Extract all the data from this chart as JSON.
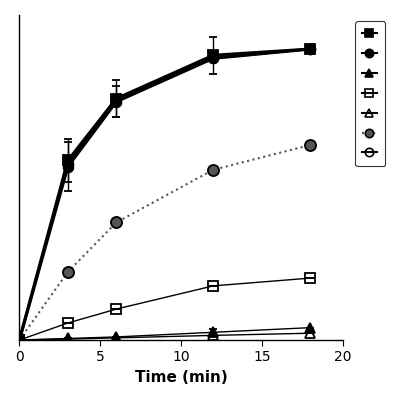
{
  "x": [
    0,
    3,
    6,
    12,
    18
  ],
  "series": [
    {
      "label": "filled_square",
      "y": [
        0,
        0.58,
        0.78,
        0.92,
        0.94
      ],
      "yerr": [
        0,
        0.07,
        0.06,
        0.06,
        0
      ],
      "marker": "s",
      "markersize": 7,
      "color": "black",
      "fillstyle": "full",
      "linestyle": "-",
      "linewidth": 2.2,
      "zorder": 6
    },
    {
      "label": "filled_circle_solid",
      "y": [
        0,
        0.56,
        0.77,
        0.91,
        0.94
      ],
      "yerr": [
        0,
        0.08,
        0.05,
        0,
        0
      ],
      "marker": "o",
      "markersize": 7,
      "color": "black",
      "fillstyle": "full",
      "linestyle": "-",
      "linewidth": 2.2,
      "zorder": 5
    },
    {
      "label": "filled_triangle",
      "y": [
        0,
        0.005,
        0.01,
        0.025,
        0.04
      ],
      "yerr": [
        0,
        0,
        0,
        0.012,
        0
      ],
      "marker": "^",
      "markersize": 7,
      "color": "black",
      "fillstyle": "full",
      "linestyle": "-",
      "linewidth": 1.0,
      "zorder": 3
    },
    {
      "label": "open_square",
      "y": [
        0,
        0.055,
        0.1,
        0.175,
        0.2
      ],
      "yerr": [
        0,
        0,
        0,
        0,
        0
      ],
      "marker": "s",
      "markersize": 7,
      "color": "black",
      "fillstyle": "none",
      "linestyle": "-",
      "linewidth": 1.0,
      "zorder": 3
    },
    {
      "label": "open_triangle",
      "y": [
        0,
        0.003,
        0.007,
        0.015,
        0.022
      ],
      "yerr": [
        0,
        0,
        0,
        0,
        0
      ],
      "marker": "^",
      "markersize": 7,
      "color": "black",
      "fillstyle": "none",
      "linestyle": "-",
      "linewidth": 1.0,
      "zorder": 2
    },
    {
      "label": "filled_circle_dotted",
      "y": [
        0,
        0.22,
        0.38,
        0.55,
        0.63
      ],
      "yerr": [
        0,
        0,
        0,
        0,
        0
      ],
      "marker": "o",
      "markersize": 8,
      "color": "#555555",
      "fillstyle": "full",
      "linestyle": ":",
      "linewidth": 1.5,
      "zorder": 4
    },
    {
      "label": "open_circle",
      "y": [
        0,
        0.57,
        0.78,
        0.91,
        0.94
      ],
      "yerr": [
        0,
        0,
        0,
        0,
        0
      ],
      "marker": "o",
      "markersize": 7,
      "color": "black",
      "fillstyle": "none",
      "linestyle": "-",
      "linewidth": 1.5,
      "zorder": 5
    }
  ],
  "xlabel": "Time (min)",
  "xlim": [
    0,
    20
  ],
  "ylim": [
    0,
    1.05
  ],
  "xticks": [
    0,
    5,
    10,
    15,
    20
  ],
  "legend_entries": [
    {
      "marker": "s",
      "fillstyle": "full",
      "linestyle": "-",
      "color": "black"
    },
    {
      "marker": "o",
      "fillstyle": "full",
      "linestyle": "-",
      "color": "black"
    },
    {
      "marker": "^",
      "fillstyle": "full",
      "linestyle": "-",
      "color": "black"
    },
    {
      "marker": "s",
      "fillstyle": "none",
      "linestyle": "-",
      "color": "black"
    },
    {
      "marker": "^",
      "fillstyle": "none",
      "linestyle": "-",
      "color": "black"
    },
    {
      "marker": "o",
      "fillstyle": "full",
      "linestyle": ":",
      "color": "#555555"
    },
    {
      "marker": "o",
      "fillstyle": "none",
      "linestyle": "-",
      "color": "black"
    }
  ],
  "background_color": "#ffffff"
}
